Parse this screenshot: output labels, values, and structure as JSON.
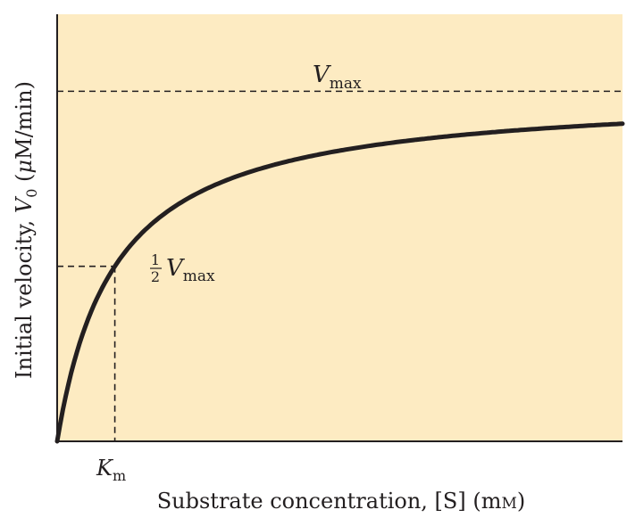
{
  "chart_data": {
    "type": "line",
    "title": "",
    "xlabel": "Substrate concentration, [S] (mM)",
    "ylabel": "Initial velocity, V0 (μM/min)",
    "model": "michaelis-menten",
    "Vmax": 1,
    "Km": 1,
    "xlim": [
      0,
      9.8
    ],
    "ylim": [
      0,
      1.22
    ],
    "series": [
      {
        "x": [
          0,
          0.2,
          0.4,
          0.6,
          0.8,
          1.0,
          1.2,
          1.6,
          2.0,
          2.5,
          3.0,
          3.5,
          4.0,
          5.0,
          6.0,
          7.0,
          8.0,
          9.0,
          9.8
        ],
        "values": [
          0,
          0.167,
          0.286,
          0.375,
          0.444,
          0.5,
          0.545,
          0.615,
          0.667,
          0.714,
          0.75,
          0.778,
          0.8,
          0.833,
          0.857,
          0.875,
          0.889,
          0.9,
          0.907
        ]
      }
    ],
    "annotations": {
      "vmax_symbol": "V",
      "vmax_sub": "max",
      "half_num": "1",
      "half_den": "2",
      "half_symbol": "V",
      "half_sub": "max",
      "km_symbol": "K",
      "km_sub": "m"
    },
    "ylabel_parts": {
      "prefix": "Initial velocity, ",
      "var": "V",
      "var_sub": "0",
      "unit_open": " (",
      "unit_mu": "μ",
      "unit_rest": "M/min)"
    },
    "xlabel_parts": {
      "prefix": "Substrate concentration, [S] (m",
      "unit_sc": "M",
      "unit_close": ")"
    },
    "colors": {
      "plot_background": "#fdebc2",
      "curve": "#231f20",
      "axis": "#231f20",
      "text": "#231f20"
    },
    "grid": false
  }
}
